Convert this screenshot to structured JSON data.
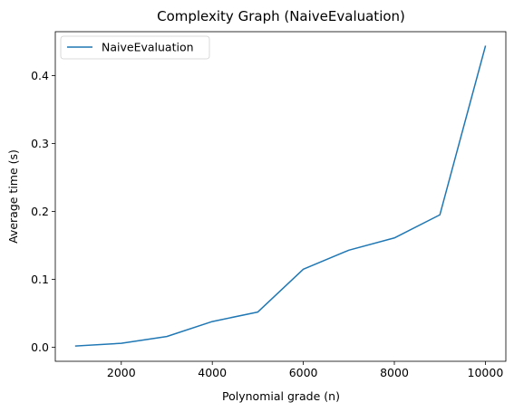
{
  "chart_data": {
    "type": "line",
    "title": "Complexity Graph (NaiveEvaluation)",
    "xlabel": "Polynomial grade (n)",
    "ylabel": "Average time (s)",
    "xlim": [
      550,
      10450
    ],
    "ylim": [
      -0.0205,
      0.4645
    ],
    "xticks": [
      2000,
      4000,
      6000,
      8000,
      10000
    ],
    "xtick_labels": [
      "2000",
      "4000",
      "6000",
      "8000",
      "10000"
    ],
    "yticks": [
      0.0,
      0.1,
      0.2,
      0.3,
      0.4
    ],
    "ytick_labels": [
      "0.0",
      "0.1",
      "0.2",
      "0.3",
      "0.4"
    ],
    "grid": false,
    "legend_position": "top-left",
    "series": [
      {
        "name": "NaiveEvaluation",
        "color": "#1f77b4",
        "x": [
          1000,
          2000,
          3000,
          4000,
          5000,
          6000,
          7000,
          8000,
          9000,
          10000
        ],
        "y": [
          0.002,
          0.006,
          0.016,
          0.038,
          0.052,
          0.115,
          0.143,
          0.161,
          0.195,
          0.443
        ]
      }
    ]
  }
}
